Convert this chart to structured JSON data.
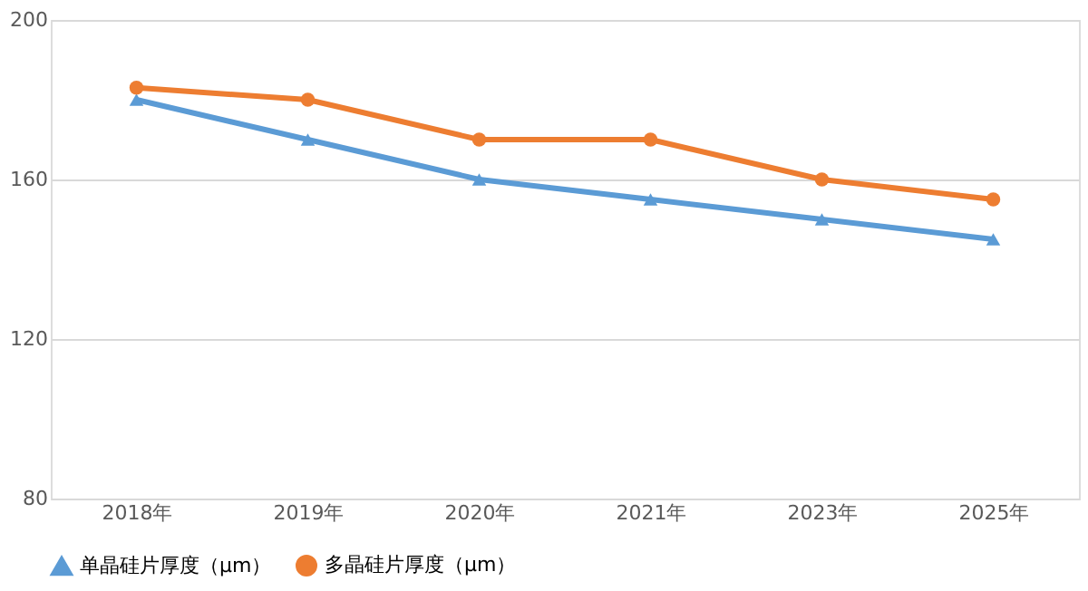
{
  "chart_data": {
    "type": "line",
    "categories": [
      "2018年",
      "2019年",
      "2020年",
      "2021年",
      "2023年",
      "2025年"
    ],
    "series": [
      {
        "name": "单晶硅片厚度（μm）",
        "color": "#5b9bd5",
        "marker": "triangle",
        "values": [
          180,
          170,
          160,
          155,
          150,
          145
        ]
      },
      {
        "name": "多晶硅片厚度（μm）",
        "color": "#ed7d31",
        "marker": "circle",
        "values": [
          183,
          180,
          170,
          170,
          160,
          155
        ]
      }
    ],
    "ylim": [
      80,
      200
    ],
    "yticks": [
      80,
      120,
      160,
      200
    ],
    "grid": "y",
    "legend": "bottom",
    "line_style": "solid"
  }
}
